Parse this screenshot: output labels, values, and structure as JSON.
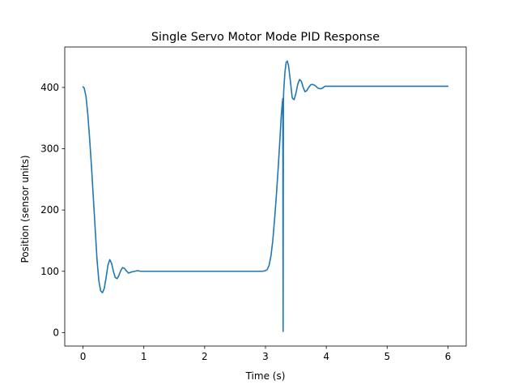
{
  "chart_data": {
    "type": "line",
    "title": "Single Servo Motor Mode PID Response",
    "xlabel": "Time (s)",
    "ylabel": "Position (sensor units)",
    "xlim": [
      -0.3,
      6.3
    ],
    "ylim": [
      -22,
      466
    ],
    "xticks": [
      0,
      1,
      2,
      3,
      4,
      5,
      6
    ],
    "xtick_labels": [
      "0",
      "1",
      "2",
      "3",
      "4",
      "5",
      "6"
    ],
    "yticks": [
      0,
      100,
      200,
      300,
      400
    ],
    "ytick_labels": [
      "0",
      "100",
      "200",
      "300",
      "400"
    ],
    "grid": false,
    "legend": false,
    "colors": {
      "series": "#1f77b4"
    },
    "series": [
      {
        "x": [
          0.0,
          0.02,
          0.05,
          0.08,
          0.11,
          0.14,
          0.17,
          0.2,
          0.23,
          0.26,
          0.29,
          0.32,
          0.35,
          0.38,
          0.41,
          0.44,
          0.47,
          0.5,
          0.53,
          0.56,
          0.59,
          0.62,
          0.65,
          0.68,
          0.71,
          0.75,
          0.8,
          0.85,
          0.9,
          0.95,
          1.0,
          1.2,
          1.4,
          1.6,
          1.8,
          2.0,
          2.2,
          2.4,
          2.6,
          2.8,
          2.95,
          3.0,
          3.03,
          3.06,
          3.09,
          3.12,
          3.15,
          3.18,
          3.21,
          3.24,
          3.26,
          3.28,
          3.285,
          3.29,
          3.295,
          3.3,
          3.32,
          3.34,
          3.36,
          3.38,
          3.41,
          3.44,
          3.47,
          3.5,
          3.53,
          3.56,
          3.59,
          3.62,
          3.65,
          3.68,
          3.71,
          3.74,
          3.77,
          3.8,
          3.83,
          3.86,
          3.89,
          3.92,
          3.95,
          3.98,
          4.0,
          4.05,
          4.1,
          4.3,
          4.6,
          5.0,
          5.4,
          5.8,
          6.0
        ],
        "y": [
          401,
          399,
          385,
          355,
          315,
          270,
          220,
          170,
          120,
          85,
          68,
          65,
          72,
          90,
          110,
          119,
          113,
          100,
          90,
          88,
          93,
          101,
          106,
          105,
          101,
          97,
          99,
          100,
          101,
          100,
          100,
          100,
          100,
          100,
          100,
          100,
          100,
          100,
          100,
          100,
          100,
          101,
          103,
          110,
          125,
          150,
          185,
          225,
          270,
          320,
          355,
          378,
          382,
          2,
          380,
          395,
          425,
          441,
          443,
          435,
          410,
          383,
          380,
          390,
          405,
          413,
          410,
          400,
          393,
          395,
          400,
          404,
          405,
          404,
          402,
          399,
          398,
          398,
          400,
          402,
          402,
          402,
          402,
          402,
          402,
          402,
          402,
          402,
          402
        ]
      }
    ]
  }
}
